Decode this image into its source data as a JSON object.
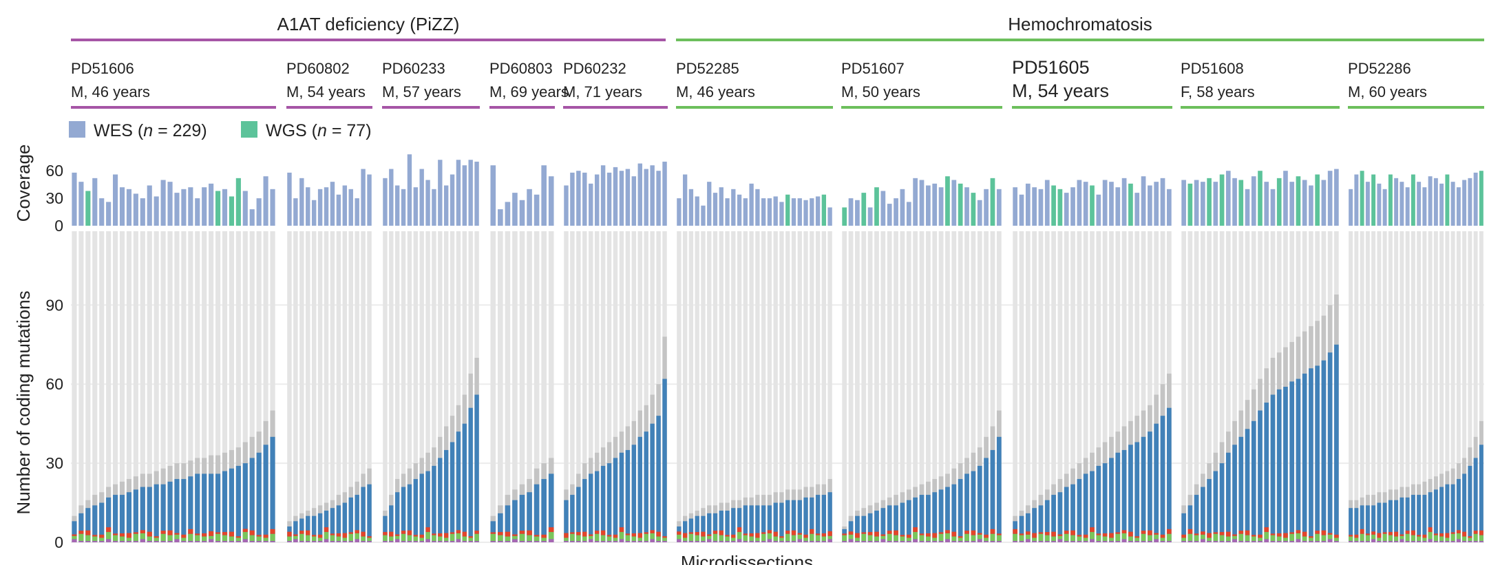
{
  "chart_data": {
    "type": "bar",
    "title": "",
    "xlabel": "Microdissections",
    "coverage_panel": {
      "ylabel": "Coverage",
      "yticks": [
        0,
        30,
        60
      ],
      "ylim": [
        0,
        75
      ],
      "legend": [
        {
          "name": "WES (n = 229)",
          "prefix": "WES (",
          "n_label": "n",
          "suffix": " = 229)",
          "color": "#93a9d2"
        },
        {
          "name": "WGS (n = 77)",
          "prefix": "WGS (",
          "n_label": "n",
          "suffix": " = 77)",
          "color": "#5cc39a"
        }
      ]
    },
    "mutation_panel": {
      "ylabel": "Number of coding mutations",
      "yticks": [
        0,
        30,
        60,
        90
      ],
      "ylim": [
        0,
        118
      ],
      "series_colors": {
        "background": "#e4e4e4",
        "total": "#c4c4c4",
        "blue": "#4181b8",
        "green": "#7ac65b",
        "red": "#e2452a",
        "purple": "#a567b2"
      }
    },
    "groups": [
      {
        "name": "A1AT deficiency (PiZZ)",
        "color": "#a655a6"
      },
      {
        "name": "Hemochromatosis",
        "color": "#6cbf5c"
      }
    ],
    "patients": [
      {
        "id": "PD51606",
        "info": "M, 46 years",
        "group": 0,
        "n": 30,
        "tot": [
          10,
          14,
          16,
          18,
          19,
          21,
          22,
          23,
          24,
          25,
          26,
          26,
          27,
          28,
          29,
          30,
          30,
          31,
          32,
          32,
          33,
          33,
          34,
          35,
          36,
          38,
          40,
          42,
          46,
          50
        ],
        "cov": [
          58,
          48,
          38,
          52,
          30,
          26,
          56,
          42,
          40,
          35,
          30,
          44,
          32,
          50,
          48,
          36,
          40,
          42,
          30,
          42,
          46,
          38,
          40,
          32,
          52,
          38,
          18,
          30,
          54,
          40
        ],
        "wgs": [
          2,
          21,
          23,
          24
        ]
      },
      {
        "id": "PD60802",
        "info": "M, 54 years",
        "group": 0,
        "n": 14,
        "tot": [
          8,
          10,
          11,
          12,
          13,
          14,
          15,
          16,
          18,
          19,
          21,
          23,
          26,
          28
        ],
        "cov": [
          58,
          30,
          52,
          42,
          28,
          40,
          42,
          48,
          34,
          44,
          40,
          30,
          62,
          56
        ],
        "wgs": []
      },
      {
        "id": "PD60233",
        "info": "M, 57 years",
        "group": 0,
        "n": 16,
        "tot": [
          12,
          18,
          24,
          26,
          28,
          30,
          32,
          34,
          36,
          40,
          44,
          48,
          52,
          56,
          64,
          70
        ],
        "cov": [
          52,
          62,
          44,
          40,
          78,
          42,
          62,
          50,
          40,
          72,
          44,
          56,
          72,
          66,
          72,
          70
        ],
        "wgs": []
      },
      {
        "id": "PD60803",
        "info": "M, 69 years",
        "group": 0,
        "n": 9,
        "tot": [
          10,
          14,
          18,
          20,
          22,
          24,
          28,
          30,
          32
        ],
        "cov": [
          66,
          18,
          26,
          36,
          28,
          40,
          34,
          66,
          54
        ],
        "wgs": []
      },
      {
        "id": "PD60232",
        "info": "M, 71 years",
        "group": 0,
        "n": 17,
        "tot": [
          20,
          22,
          26,
          30,
          32,
          34,
          36,
          38,
          40,
          42,
          44,
          46,
          50,
          52,
          56,
          60,
          78
        ],
        "cov": [
          44,
          58,
          60,
          58,
          46,
          56,
          66,
          58,
          64,
          60,
          62,
          54,
          68,
          62,
          66,
          60,
          70
        ],
        "wgs": []
      },
      {
        "id": "PD52285",
        "info": "M, 46 years",
        "group": 1,
        "n": 26,
        "tot": [
          8,
          10,
          11,
          12,
          13,
          14,
          14,
          15,
          15,
          16,
          16,
          17,
          17,
          18,
          18,
          18,
          19,
          19,
          20,
          20,
          20,
          21,
          21,
          22,
          22,
          24
        ],
        "cov": [
          30,
          56,
          40,
          32,
          22,
          48,
          36,
          42,
          30,
          40,
          34,
          30,
          46,
          40,
          30,
          30,
          32,
          26,
          34,
          30,
          30,
          28,
          30,
          32,
          34,
          20
        ],
        "wgs": [
          18,
          24
        ]
      },
      {
        "id": "PD51607",
        "info": "M, 50 years",
        "group": 1,
        "n": 25,
        "tot": [
          6,
          10,
          12,
          13,
          14,
          15,
          16,
          17,
          18,
          19,
          20,
          21,
          22,
          23,
          24,
          25,
          26,
          28,
          30,
          32,
          34,
          36,
          40,
          44,
          50
        ],
        "cov": [
          20,
          30,
          28,
          36,
          20,
          42,
          38,
          24,
          30,
          40,
          26,
          52,
          50,
          44,
          46,
          42,
          54,
          50,
          46,
          42,
          36,
          28,
          40,
          52,
          40
        ],
        "wgs": [
          0,
          3,
          5,
          16,
          18,
          20,
          23
        ]
      },
      {
        "id": "PD51605",
        "info": "M, 54 years",
        "group": 1,
        "n": 25,
        "tot": [
          10,
          12,
          14,
          16,
          18,
          20,
          22,
          24,
          26,
          28,
          30,
          32,
          34,
          36,
          38,
          40,
          42,
          44,
          46,
          48,
          50,
          52,
          56,
          60,
          64
        ],
        "cov": [
          42,
          34,
          46,
          42,
          40,
          50,
          44,
          40,
          36,
          42,
          50,
          48,
          44,
          34,
          50,
          48,
          42,
          52,
          46,
          36,
          54,
          44,
          48,
          52,
          40
        ],
        "wgs": [
          6,
          7,
          12,
          18
        ]
      },
      {
        "id": "PD51608",
        "info": "F, 58 years",
        "group": 1,
        "n": 25,
        "tot": [
          14,
          18,
          22,
          26,
          30,
          34,
          38,
          42,
          46,
          50,
          54,
          58,
          62,
          66,
          70,
          72,
          74,
          76,
          78,
          80,
          82,
          84,
          86,
          90,
          94
        ],
        "cov": [
          50,
          46,
          50,
          48,
          52,
          48,
          56,
          60,
          52,
          50,
          40,
          54,
          60,
          48,
          40,
          52,
          60,
          48,
          54,
          50,
          44,
          56,
          50,
          60,
          62
        ],
        "wgs": [
          1,
          4,
          6,
          9,
          12,
          15,
          18,
          21
        ]
      },
      {
        "id": "PD52286",
        "info": "M, 60 years",
        "group": 1,
        "n": 24,
        "tot": [
          16,
          16,
          17,
          18,
          18,
          19,
          19,
          20,
          20,
          21,
          21,
          22,
          22,
          23,
          24,
          25,
          26,
          27,
          28,
          30,
          32,
          36,
          40,
          46
        ],
        "cov": [
          40,
          56,
          60,
          48,
          56,
          46,
          40,
          56,
          52,
          48,
          42,
          56,
          48,
          42,
          54,
          52,
          46,
          56,
          48,
          42,
          50,
          52,
          58,
          60
        ],
        "wgs": [
          2,
          4,
          7,
          11,
          17,
          23
        ]
      }
    ]
  }
}
